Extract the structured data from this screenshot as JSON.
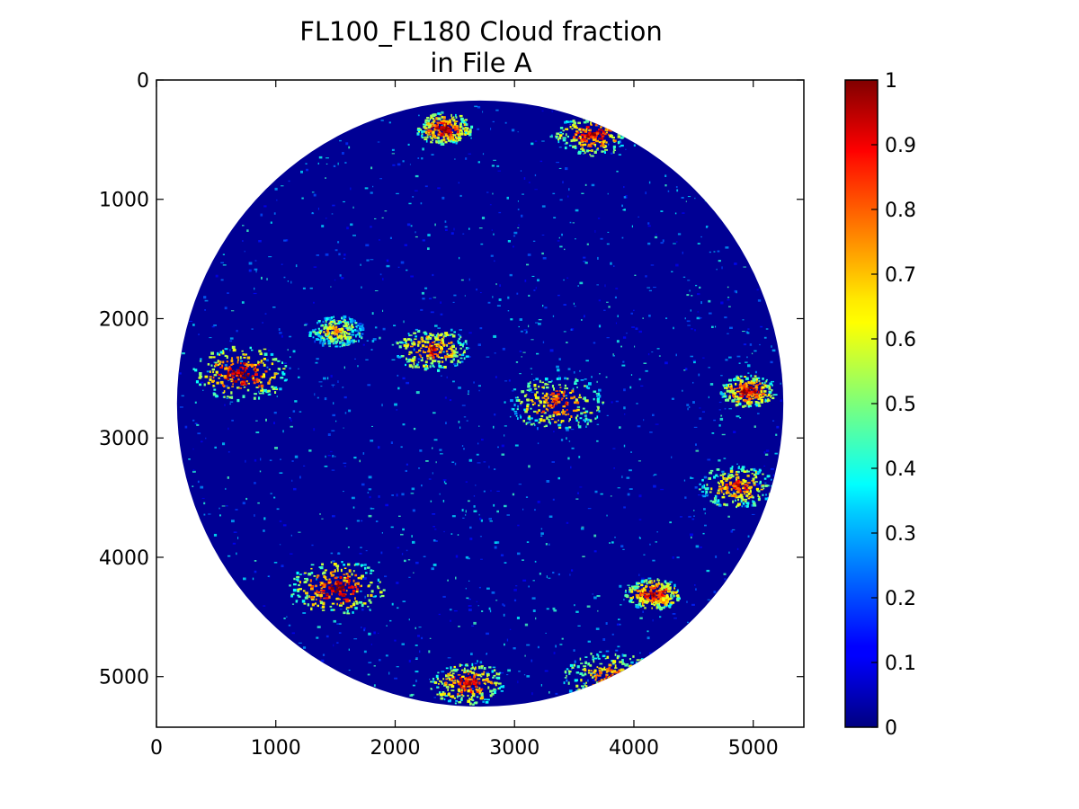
{
  "chart_data": {
    "type": "heatmap",
    "title": [
      "FL100_FL180 Cloud fraction",
      "in File A"
    ],
    "xlabel": "",
    "ylabel": "",
    "xlim": [
      0,
      5424
    ],
    "ylim": [
      5424,
      0
    ],
    "y_inverted": true,
    "x_ticks": [
      0,
      1000,
      2000,
      3000,
      4000,
      5000
    ],
    "y_ticks": [
      0,
      1000,
      2000,
      3000,
      4000,
      5000
    ],
    "x_tick_labels": [
      "0",
      "1000",
      "2000",
      "3000",
      "4000",
      "5000"
    ],
    "y_tick_labels": [
      "0",
      "1000",
      "2000",
      "3000",
      "4000",
      "5000"
    ],
    "grid": false,
    "colormap": "jet",
    "colorbar": {
      "range": [
        0,
        1
      ],
      "ticks": [
        0,
        0.1,
        0.2,
        0.3,
        0.4,
        0.5,
        0.6,
        0.7,
        0.8,
        0.9,
        1
      ],
      "tick_labels": [
        "0",
        "0.1",
        "0.2",
        "0.3",
        "0.4",
        "0.5",
        "0.6",
        "0.7",
        "0.8",
        "0.9",
        "1"
      ],
      "placement": "right"
    },
    "disk": {
      "center": [
        2712,
        2712
      ],
      "radius": 2540,
      "background_value": 0
    },
    "cloud_regions": [
      {
        "label": "north-top",
        "x": 2400,
        "y": 400,
        "value": 0.95
      },
      {
        "label": "north-right",
        "x": 3650,
        "y": 450,
        "value": 0.9
      },
      {
        "label": "west-mid",
        "x": 700,
        "y": 2450,
        "value": 0.95
      },
      {
        "label": "central-band",
        "x": 1500,
        "y": 2100,
        "value": 0.7
      },
      {
        "label": "central-small",
        "x": 2300,
        "y": 2250,
        "value": 0.85
      },
      {
        "label": "east-arc",
        "x": 3350,
        "y": 2700,
        "value": 0.85
      },
      {
        "label": "far-east",
        "x": 4950,
        "y": 2600,
        "value": 0.95
      },
      {
        "label": "far-east-lower",
        "x": 4850,
        "y": 3400,
        "value": 0.85
      },
      {
        "label": "southwest-band",
        "x": 1500,
        "y": 4250,
        "value": 0.95
      },
      {
        "label": "south-east-blob",
        "x": 4150,
        "y": 4300,
        "value": 0.95
      },
      {
        "label": "south-rim",
        "x": 2600,
        "y": 5050,
        "value": 0.9
      },
      {
        "label": "south-east-rim",
        "x": 3800,
        "y": 5000,
        "value": 0.8
      }
    ]
  }
}
